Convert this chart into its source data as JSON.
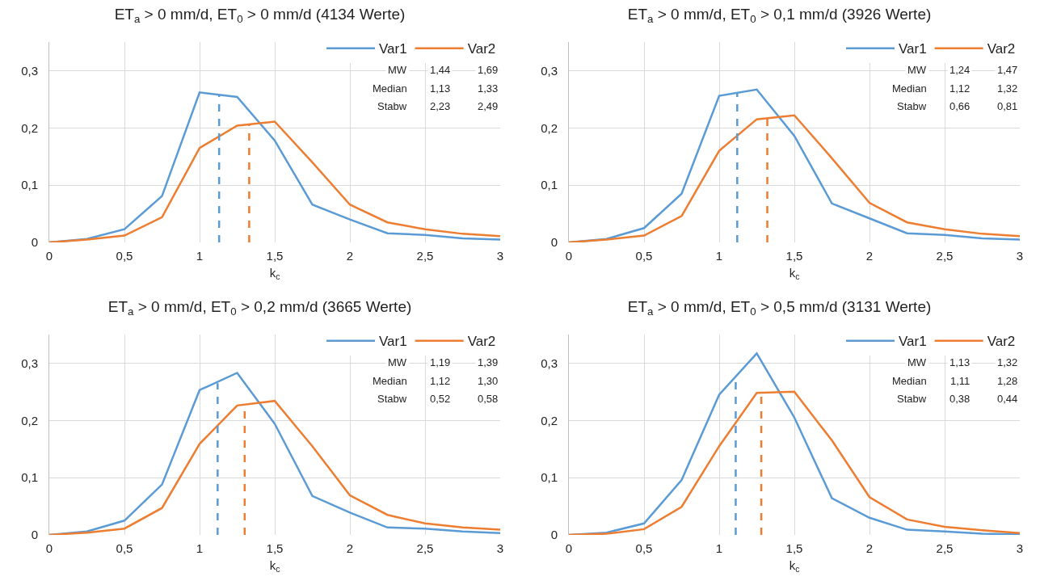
{
  "chart_data": [
    {
      "type": "line",
      "title": "ET$_{a}$ > 0 mm/d, ET$_{0}$ > 0 mm/d (4134 Werte)",
      "xlabel": "k$_{c}$",
      "marker": "none",
      "grid": true,
      "legend": "top right",
      "x": [
        0,
        0.25,
        0.5,
        0.75,
        1,
        1.25,
        1.5,
        1.75,
        2,
        2.25,
        2.5,
        2.75,
        3
      ],
      "xlim": [
        0,
        3
      ],
      "xticks": [
        {
          "value": 0,
          "label": "0"
        },
        {
          "value": 0.5,
          "label": "0,5"
        },
        1,
        {
          "value": 1.5,
          "label": "1,5"
        },
        2,
        {
          "value": 2.5,
          "label": "2,5"
        },
        3
      ],
      "ylim": [
        0,
        0.35
      ],
      "yticks": [
        {
          "value": 0,
          "label": "0"
        },
        {
          "value": 0.1,
          "label": "0,1"
        },
        {
          "value": 0.2,
          "label": "0,2"
        },
        {
          "value": 0.3,
          "label": "0,3"
        }
      ],
      "series": [
        {
          "name": "Var1",
          "color": "#5b9bd5",
          "line_style": "solid",
          "values": [
            0,
            0.006,
            0.023,
            0.081,
            0.262,
            0.254,
            0.178,
            0.066,
            0.04,
            0.016,
            0.013,
            0.007,
            0.005
          ]
        },
        {
          "name": "Var2",
          "color": "#ed7d31",
          "line_style": "solid",
          "values": [
            0,
            0.005,
            0.012,
            0.044,
            0.165,
            0.204,
            0.211,
            0.14,
            0.066,
            0.035,
            0.023,
            0.015,
            0.011
          ]
        },
        {
          "color": "#5b9bd5",
          "line_style": "dashed",
          "x": [
            1.13,
            1.13
          ],
          "values": [
            0,
            0.257
          ]
        },
        {
          "color": "#ed7d31",
          "line_style": "dashed",
          "x": [
            1.33,
            1.33
          ],
          "values": [
            0,
            0.206
          ]
        }
      ],
      "annotations": [
        "MW",
        "1,44",
        "1,69",
        "Median",
        "1,13",
        "1,33",
        "Stabw",
        "2,23",
        "2,49"
      ]
    },
    {
      "type": "line",
      "title": "ET$_{a}$ > 0 mm/d, ET$_{0}$ > 0,1 mm/d (3926 Werte)",
      "xlabel": "k$_{c}$",
      "marker": "none",
      "grid": true,
      "legend": "top right",
      "x": [
        0,
        0.25,
        0.5,
        0.75,
        1,
        1.25,
        1.5,
        1.75,
        2,
        2.25,
        2.5,
        2.75,
        3
      ],
      "xlim": [
        0,
        3
      ],
      "xticks": [
        {
          "value": 0,
          "label": "0"
        },
        {
          "value": 0.5,
          "label": "0,5"
        },
        1,
        {
          "value": 1.5,
          "label": "1,5"
        },
        2,
        {
          "value": 2.5,
          "label": "2,5"
        },
        3
      ],
      "ylim": [
        0,
        0.35
      ],
      "yticks": [
        {
          "value": 0,
          "label": "0"
        },
        {
          "value": 0.1,
          "label": "0,1"
        },
        {
          "value": 0.2,
          "label": "0,2"
        },
        {
          "value": 0.3,
          "label": "0,3"
        }
      ],
      "series": [
        {
          "name": "Var1",
          "color": "#5b9bd5",
          "line_style": "solid",
          "values": [
            0,
            0.006,
            0.025,
            0.085,
            0.256,
            0.267,
            0.186,
            0.068,
            0.042,
            0.016,
            0.013,
            0.007,
            0.005
          ]
        },
        {
          "name": "Var2",
          "color": "#ed7d31",
          "line_style": "solid",
          "values": [
            0,
            0.005,
            0.012,
            0.046,
            0.16,
            0.215,
            0.222,
            0.147,
            0.069,
            0.035,
            0.023,
            0.015,
            0.011
          ]
        },
        {
          "color": "#5b9bd5",
          "line_style": "dashed",
          "x": [
            1.12,
            1.12
          ],
          "values": [
            0,
            0.262
          ]
        },
        {
          "color": "#ed7d31",
          "line_style": "dashed",
          "x": [
            1.32,
            1.32
          ],
          "values": [
            0,
            0.217
          ]
        }
      ],
      "annotations": [
        "MW",
        "1,24",
        "1,47",
        "Median",
        "1,12",
        "1,32",
        "Stabw",
        "0,66",
        "0,81"
      ]
    },
    {
      "type": "line",
      "title": "ET$_{a}$ > 0 mm/d, ET$_{0}$ > 0,2 mm/d (3665 Werte)",
      "xlabel": "k$_{c}$",
      "marker": "none",
      "grid": true,
      "legend": "top right",
      "x": [
        0,
        0.25,
        0.5,
        0.75,
        1,
        1.25,
        1.5,
        1.75,
        2,
        2.25,
        2.5,
        2.75,
        3
      ],
      "xlim": [
        0,
        3
      ],
      "xticks": [
        {
          "value": 0,
          "label": "0"
        },
        {
          "value": 0.5,
          "label": "0,5"
        },
        1,
        {
          "value": 1.5,
          "label": "1,5"
        },
        2,
        {
          "value": 2.5,
          "label": "2,5"
        },
        3
      ],
      "ylim": [
        0,
        0.35
      ],
      "yticks": [
        {
          "value": 0,
          "label": "0"
        },
        {
          "value": 0.1,
          "label": "0,1"
        },
        {
          "value": 0.2,
          "label": "0,2"
        },
        {
          "value": 0.3,
          "label": "0,3"
        }
      ],
      "series": [
        {
          "name": "Var1",
          "color": "#5b9bd5",
          "line_style": "solid",
          "values": [
            0,
            0.006,
            0.025,
            0.088,
            0.253,
            0.283,
            0.194,
            0.068,
            0.039,
            0.013,
            0.011,
            0.006,
            0.003
          ]
        },
        {
          "name": "Var2",
          "color": "#ed7d31",
          "line_style": "solid",
          "values": [
            0,
            0.004,
            0.011,
            0.047,
            0.159,
            0.226,
            0.234,
            0.155,
            0.069,
            0.035,
            0.02,
            0.013,
            0.009
          ]
        },
        {
          "color": "#5b9bd5",
          "line_style": "dashed",
          "x": [
            1.12,
            1.12
          ],
          "values": [
            0,
            0.265
          ]
        },
        {
          "color": "#ed7d31",
          "line_style": "dashed",
          "x": [
            1.3,
            1.3
          ],
          "values": [
            0,
            0.228
          ]
        }
      ],
      "annotations": [
        "MW",
        "1,19",
        "1,39",
        "Median",
        "1,12",
        "1,30",
        "Stabw",
        "0,52",
        "0,58"
      ]
    },
    {
      "type": "line",
      "title": "ET$_{a}$ > 0 mm/d, ET$_{0}$ > 0,5 mm/d (3131 Werte)",
      "xlabel": "k$_{c}$",
      "marker": "none",
      "grid": true,
      "legend": "top right",
      "x": [
        0,
        0.25,
        0.5,
        0.75,
        1,
        1.25,
        1.5,
        1.75,
        2,
        2.25,
        2.5,
        2.75,
        3
      ],
      "xlim": [
        0,
        3
      ],
      "xticks": [
        {
          "value": 0,
          "label": "0"
        },
        {
          "value": 0.5,
          "label": "0,5"
        },
        1,
        {
          "value": 1.5,
          "label": "1,5"
        },
        2,
        {
          "value": 2.5,
          "label": "2,5"
        },
        3
      ],
      "ylim": [
        0,
        0.35
      ],
      "yticks": [
        {
          "value": 0,
          "label": "0"
        },
        {
          "value": 0.1,
          "label": "0,1"
        },
        {
          "value": 0.2,
          "label": "0,2"
        },
        {
          "value": 0.3,
          "label": "0,3"
        }
      ],
      "series": [
        {
          "name": "Var1",
          "color": "#5b9bd5",
          "line_style": "solid",
          "values": [
            0,
            0.004,
            0.02,
            0.096,
            0.245,
            0.317,
            0.205,
            0.064,
            0.03,
            0.009,
            0.006,
            0.002,
            0.001
          ]
        },
        {
          "name": "Var2",
          "color": "#ed7d31",
          "line_style": "solid",
          "values": [
            0,
            0.002,
            0.01,
            0.049,
            0.155,
            0.248,
            0.25,
            0.165,
            0.066,
            0.027,
            0.014,
            0.008,
            0.003
          ]
        },
        {
          "color": "#5b9bd5",
          "line_style": "dashed",
          "x": [
            1.11,
            1.11
          ],
          "values": [
            0,
            0.278
          ]
        },
        {
          "color": "#ed7d31",
          "line_style": "dashed",
          "x": [
            1.28,
            1.28
          ],
          "values": [
            0,
            0.249
          ]
        }
      ],
      "annotations": [
        "MW",
        "1,13",
        "1,32",
        "Median",
        "1,11",
        "1,28",
        "Stabw",
        "0,38",
        "0,44"
      ]
    }
  ]
}
